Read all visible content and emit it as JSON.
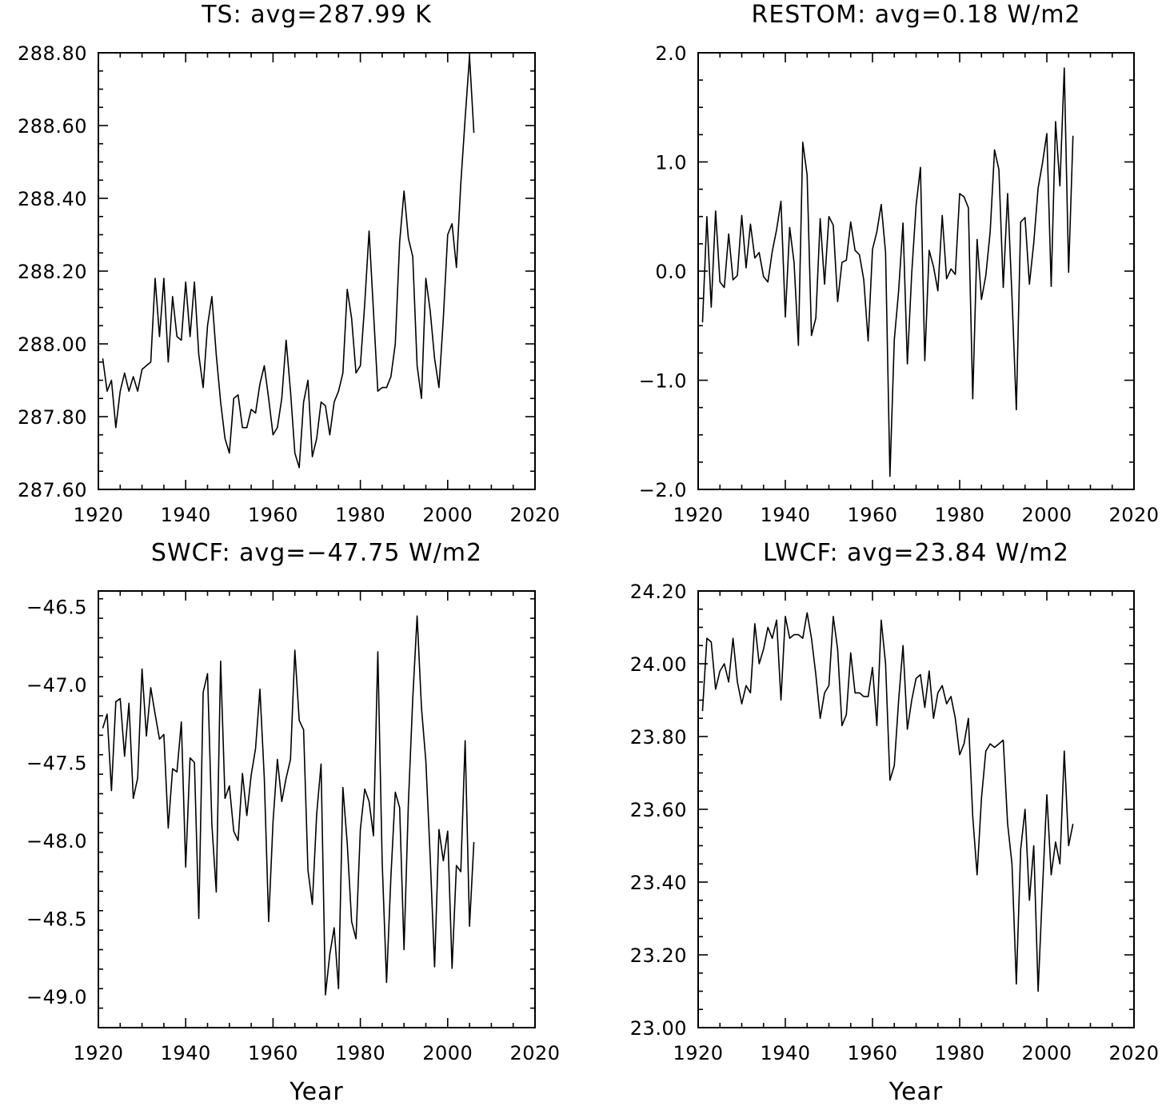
{
  "chart_data": [
    {
      "type": "line",
      "title": "TS: avg=287.99 K",
      "xlabel": "",
      "ylabel": "",
      "xlim": [
        1920,
        2020
      ],
      "ylim": [
        287.6,
        288.8
      ],
      "xticks": [
        "1920",
        "1940",
        "1960",
        "1980",
        "2000",
        "2020"
      ],
      "yticks": [
        "287.60",
        "287.80",
        "288.00",
        "288.20",
        "288.40",
        "288.60",
        "288.80"
      ],
      "grid": false,
      "x": [
        1921,
        1922,
        1923,
        1924,
        1925,
        1926,
        1927,
        1928,
        1929,
        1930,
        1931,
        1932,
        1933,
        1934,
        1935,
        1936,
        1937,
        1938,
        1939,
        1940,
        1941,
        1942,
        1943,
        1944,
        1945,
        1946,
        1947,
        1948,
        1949,
        1950,
        1951,
        1952,
        1953,
        1954,
        1955,
        1956,
        1957,
        1958,
        1959,
        1960,
        1961,
        1962,
        1963,
        1964,
        1965,
        1966,
        1967,
        1968,
        1969,
        1970,
        1971,
        1972,
        1973,
        1974,
        1975,
        1976,
        1977,
        1978,
        1979,
        1980,
        1981,
        1982,
        1983,
        1984,
        1985,
        1986,
        1987,
        1988,
        1989,
        1990,
        1991,
        1992,
        1993,
        1994,
        1995,
        1996,
        1997,
        1998,
        1999,
        2000,
        2001,
        2002,
        2003,
        2004,
        2005,
        2006
      ],
      "values": [
        287.96,
        287.87,
        287.9,
        287.77,
        287.87,
        287.92,
        287.87,
        287.91,
        287.87,
        287.93,
        287.94,
        287.95,
        288.18,
        288.02,
        288.18,
        287.95,
        288.13,
        288.02,
        288.01,
        288.17,
        288.02,
        288.17,
        287.97,
        287.88,
        288.05,
        288.13,
        287.97,
        287.84,
        287.74,
        287.7,
        287.85,
        287.86,
        287.77,
        287.77,
        287.82,
        287.81,
        287.89,
        287.94,
        287.85,
        287.75,
        287.77,
        287.85,
        288.01,
        287.87,
        287.7,
        287.66,
        287.84,
        287.9,
        287.69,
        287.74,
        287.84,
        287.83,
        287.75,
        287.84,
        287.87,
        287.92,
        288.15,
        288.07,
        287.92,
        287.94,
        288.11,
        288.31,
        288.09,
        287.87,
        287.88,
        287.88,
        287.91,
        288.0,
        288.28,
        288.42,
        288.29,
        288.24,
        287.94,
        287.85,
        288.18,
        288.09,
        287.96,
        287.88,
        288.07,
        288.3,
        288.33,
        288.21,
        288.44,
        288.62,
        288.79,
        288.58
      ]
    },
    {
      "type": "line",
      "title": "RESTOM: avg=0.18 W/m2",
      "xlabel": "",
      "ylabel": "",
      "xlim": [
        1920,
        2020
      ],
      "ylim": [
        -2.0,
        2.0
      ],
      "xticks": [
        "1920",
        "1940",
        "1960",
        "1980",
        "2000",
        "2020"
      ],
      "yticks": [
        "−2.0",
        "−1.0",
        "0.0",
        "1.0",
        "2.0"
      ],
      "grid": false,
      "x": [
        1921,
        1922,
        1923,
        1924,
        1925,
        1926,
        1927,
        1928,
        1929,
        1930,
        1931,
        1932,
        1933,
        1934,
        1935,
        1936,
        1937,
        1938,
        1939,
        1940,
        1941,
        1942,
        1943,
        1944,
        1945,
        1946,
        1947,
        1948,
        1949,
        1950,
        1951,
        1952,
        1953,
        1954,
        1955,
        1956,
        1957,
        1958,
        1959,
        1960,
        1961,
        1962,
        1963,
        1964,
        1965,
        1966,
        1967,
        1968,
        1969,
        1970,
        1971,
        1972,
        1973,
        1974,
        1975,
        1976,
        1977,
        1978,
        1979,
        1980,
        1981,
        1982,
        1983,
        1984,
        1985,
        1986,
        1987,
        1988,
        1989,
        1990,
        1991,
        1992,
        1993,
        1994,
        1995,
        1996,
        1997,
        1998,
        1999,
        2000,
        2001,
        2002,
        2003,
        2004,
        2005,
        2006
      ],
      "values": [
        -0.47,
        0.5,
        -0.33,
        0.55,
        -0.1,
        -0.15,
        0.34,
        -0.08,
        -0.04,
        0.51,
        0.03,
        0.43,
        0.12,
        0.17,
        -0.05,
        -0.1,
        0.18,
        0.38,
        0.64,
        -0.42,
        0.4,
        0.08,
        -0.68,
        1.18,
        0.88,
        -0.59,
        -0.43,
        0.48,
        -0.12,
        0.5,
        0.42,
        -0.28,
        0.08,
        0.1,
        0.45,
        0.19,
        0.15,
        -0.08,
        -0.64,
        0.2,
        0.36,
        0.61,
        0.17,
        -1.88,
        -0.63,
        -0.18,
        0.44,
        -0.85,
        -0.02,
        0.6,
        0.95,
        -0.82,
        0.19,
        0.04,
        -0.18,
        0.51,
        -0.07,
        0.02,
        -0.03,
        0.71,
        0.68,
        0.58,
        -1.17,
        0.29,
        -0.26,
        -0.04,
        0.36,
        1.11,
        0.93,
        -0.15,
        0.71,
        -0.23,
        -1.27,
        0.45,
        0.49,
        -0.12,
        0.26,
        0.76,
        0.99,
        1.26,
        -0.14,
        1.37,
        0.78,
        1.86,
        -0.01,
        1.24
      ]
    },
    {
      "type": "line",
      "title": "SWCF: avg=−47.75 W/m2",
      "xlabel": "Year",
      "ylabel": "",
      "xlim": [
        1920,
        2020
      ],
      "ylim": [
        -49.2,
        -46.4
      ],
      "xticks": [
        "1920",
        "1940",
        "1960",
        "1980",
        "2000",
        "2020"
      ],
      "yticks": [
        "−49.0",
        "−48.5",
        "−48.0",
        "−47.5",
        "−47.0",
        "−46.5"
      ],
      "grid": false,
      "x": [
        1921,
        1922,
        1923,
        1924,
        1925,
        1926,
        1927,
        1928,
        1929,
        1930,
        1931,
        1932,
        1933,
        1934,
        1935,
        1936,
        1937,
        1938,
        1939,
        1940,
        1941,
        1942,
        1943,
        1944,
        1945,
        1946,
        1947,
        1948,
        1949,
        1950,
        1951,
        1952,
        1953,
        1954,
        1955,
        1956,
        1957,
        1958,
        1959,
        1960,
        1961,
        1962,
        1963,
        1964,
        1965,
        1966,
        1967,
        1968,
        1969,
        1970,
        1971,
        1972,
        1973,
        1974,
        1975,
        1976,
        1977,
        1978,
        1979,
        1980,
        1981,
        1982,
        1983,
        1984,
        1985,
        1986,
        1987,
        1988,
        1989,
        1990,
        1991,
        1992,
        1993,
        1994,
        1995,
        1996,
        1997,
        1998,
        1999,
        2000,
        2001,
        2002,
        2003,
        2004,
        2005,
        2006
      ],
      "values": [
        -47.28,
        -47.19,
        -47.68,
        -47.11,
        -47.09,
        -47.46,
        -47.12,
        -47.73,
        -47.6,
        -46.9,
        -47.33,
        -47.02,
        -47.19,
        -47.35,
        -47.32,
        -47.92,
        -47.54,
        -47.56,
        -47.24,
        -48.17,
        -47.47,
        -47.5,
        -48.5,
        -47.05,
        -46.93,
        -47.9,
        -48.33,
        -46.85,
        -47.73,
        -47.65,
        -47.94,
        -48.0,
        -47.57,
        -47.84,
        -47.58,
        -47.41,
        -47.03,
        -47.6,
        -48.52,
        -47.88,
        -47.48,
        -47.75,
        -47.6,
        -47.48,
        -46.78,
        -47.23,
        -47.29,
        -48.19,
        -48.41,
        -47.83,
        -47.51,
        -48.99,
        -48.73,
        -48.56,
        -48.95,
        -47.66,
        -48.02,
        -48.52,
        -48.63,
        -47.93,
        -47.67,
        -47.75,
        -47.97,
        -46.79,
        -48.14,
        -48.91,
        -48.23,
        -47.69,
        -47.79,
        -48.7,
        -47.76,
        -47.09,
        -46.56,
        -47.15,
        -47.49,
        -48.11,
        -48.81,
        -47.93,
        -48.13,
        -47.94,
        -48.82,
        -48.16,
        -48.2,
        -47.36,
        -48.55,
        -48.01
      ]
    },
    {
      "type": "line",
      "title": "LWCF: avg=23.84 W/m2",
      "xlabel": "Year",
      "ylabel": "",
      "xlim": [
        1920,
        2020
      ],
      "ylim": [
        23.0,
        24.2
      ],
      "xticks": [
        "1920",
        "1940",
        "1960",
        "1980",
        "2000",
        "2020"
      ],
      "yticks": [
        "23.00",
        "23.20",
        "23.40",
        "23.60",
        "23.80",
        "24.00",
        "24.20"
      ],
      "grid": false,
      "x": [
        1921,
        1922,
        1923,
        1924,
        1925,
        1926,
        1927,
        1928,
        1929,
        1930,
        1931,
        1932,
        1933,
        1934,
        1935,
        1936,
        1937,
        1938,
        1939,
        1940,
        1941,
        1942,
        1943,
        1944,
        1945,
        1946,
        1947,
        1948,
        1949,
        1950,
        1951,
        1952,
        1953,
        1954,
        1955,
        1956,
        1957,
        1958,
        1959,
        1960,
        1961,
        1962,
        1963,
        1964,
        1965,
        1966,
        1967,
        1968,
        1969,
        1970,
        1971,
        1972,
        1973,
        1974,
        1975,
        1976,
        1977,
        1978,
        1979,
        1980,
        1981,
        1982,
        1983,
        1984,
        1985,
        1986,
        1987,
        1988,
        1989,
        1990,
        1991,
        1992,
        1993,
        1994,
        1995,
        1996,
        1997,
        1998,
        1999,
        2000,
        2001,
        2002,
        2003,
        2004,
        2005,
        2006
      ],
      "values": [
        23.87,
        24.07,
        24.06,
        23.93,
        23.98,
        24.0,
        23.95,
        24.07,
        23.95,
        23.89,
        23.94,
        23.92,
        24.11,
        24.0,
        24.04,
        24.1,
        24.07,
        24.12,
        23.9,
        24.13,
        24.07,
        24.08,
        24.08,
        24.07,
        24.14,
        24.07,
        23.97,
        23.85,
        23.92,
        23.94,
        24.13,
        24.04,
        23.83,
        23.86,
        24.03,
        23.92,
        23.92,
        23.91,
        23.91,
        23.99,
        23.83,
        24.12,
        24.0,
        23.68,
        23.72,
        23.9,
        24.05,
        23.82,
        23.9,
        23.96,
        23.97,
        23.88,
        23.98,
        23.85,
        23.92,
        23.94,
        23.89,
        23.91,
        23.85,
        23.75,
        23.78,
        23.85,
        23.58,
        23.42,
        23.63,
        23.76,
        23.78,
        23.77,
        23.78,
        23.79,
        23.56,
        23.45,
        23.12,
        23.49,
        23.6,
        23.35,
        23.5,
        23.1,
        23.38,
        23.64,
        23.42,
        23.51,
        23.45,
        23.76,
        23.5,
        23.56
      ]
    }
  ]
}
